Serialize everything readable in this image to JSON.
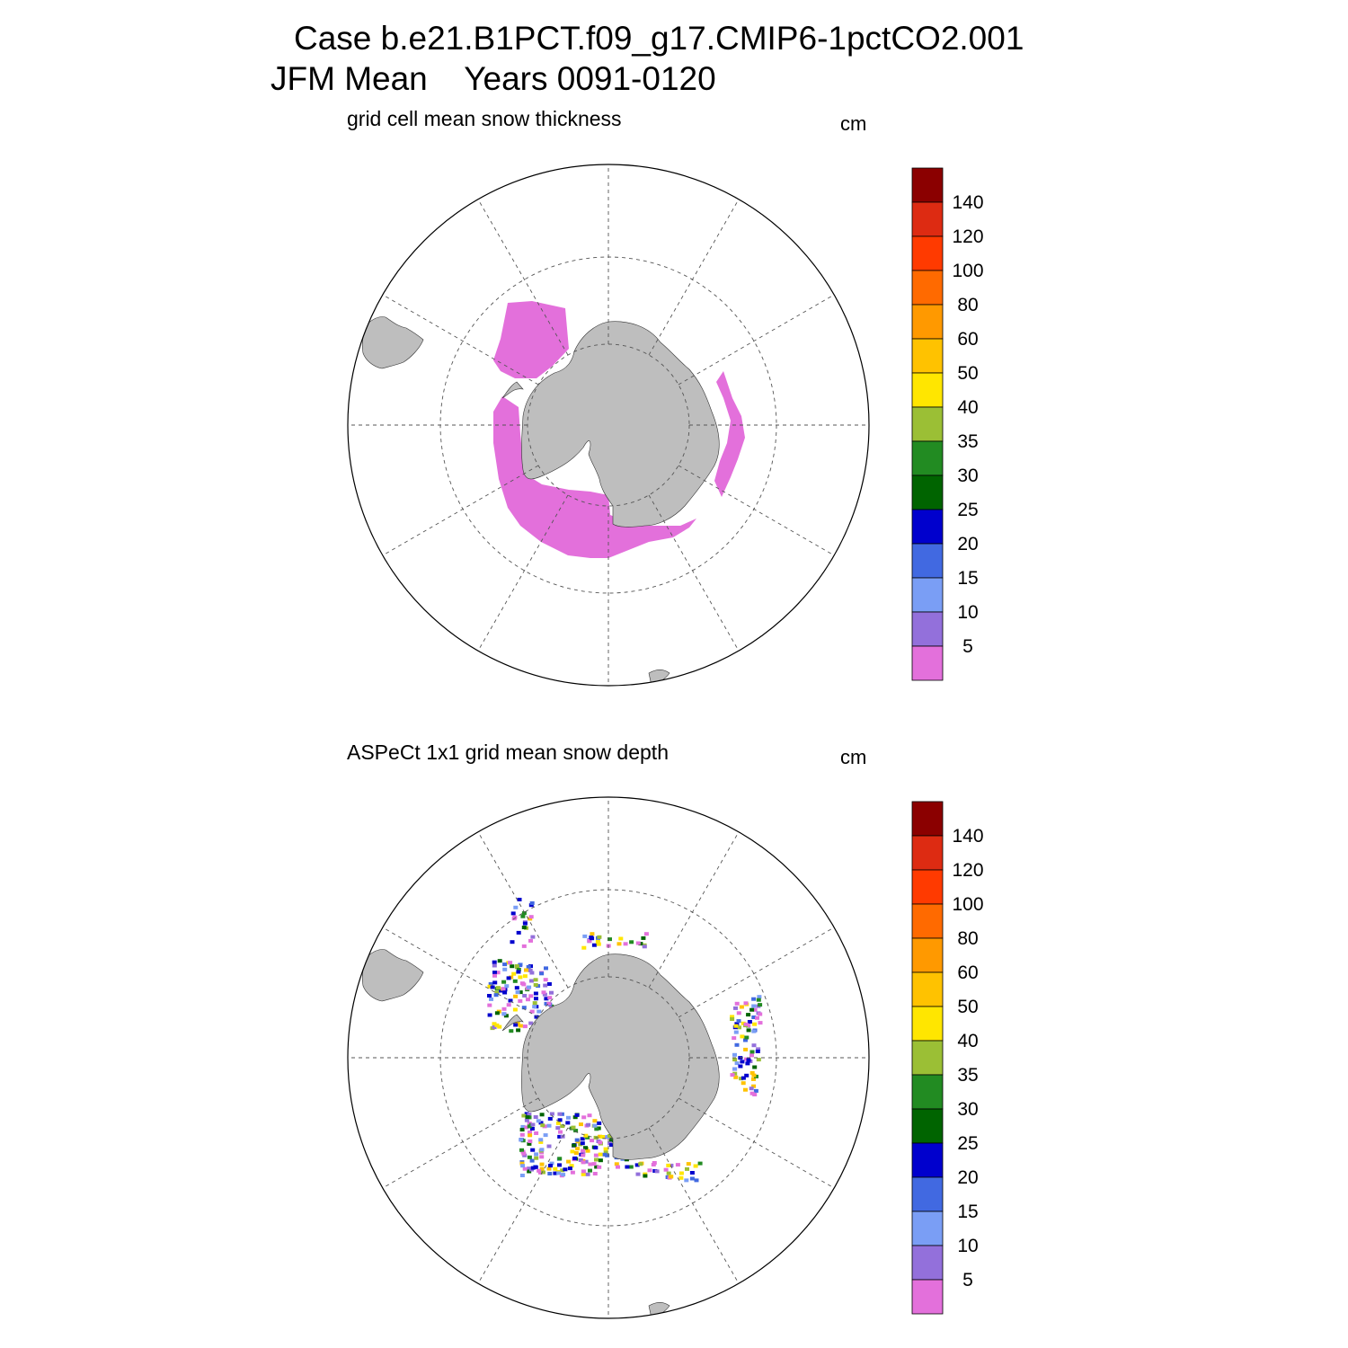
{
  "title": {
    "case": "Case b.e21.B1PCT.f09_g17.CMIP6-1pctCO2.001",
    "period": "JFM Mean    Years 0091-0120"
  },
  "panels": [
    {
      "id": "model",
      "title": "grid cell mean snow thickness",
      "units": "cm"
    },
    {
      "id": "observation",
      "title": "ASPeCt 1x1 grid mean snow depth",
      "units": "cm"
    }
  ],
  "colorbar": {
    "labels": [
      "140",
      "120",
      "100",
      "80",
      "60",
      "50",
      "40",
      "35",
      "30",
      "25",
      "20",
      "15",
      "10",
      "5"
    ],
    "colors_top_to_bottom": [
      "#8b0000",
      "#dd2b12",
      "#ff3a00",
      "#ff6a00",
      "#ff9900",
      "#ffc200",
      "#ffe600",
      "#9bbf35",
      "#228b22",
      "#006400",
      "#0000cd",
      "#4169e1",
      "#7a9ef5",
      "#9370db",
      "#e370db"
    ]
  },
  "colors": {
    "land": "#bebebe",
    "model_snow": "#e370db",
    "grid": "#555555"
  }
}
